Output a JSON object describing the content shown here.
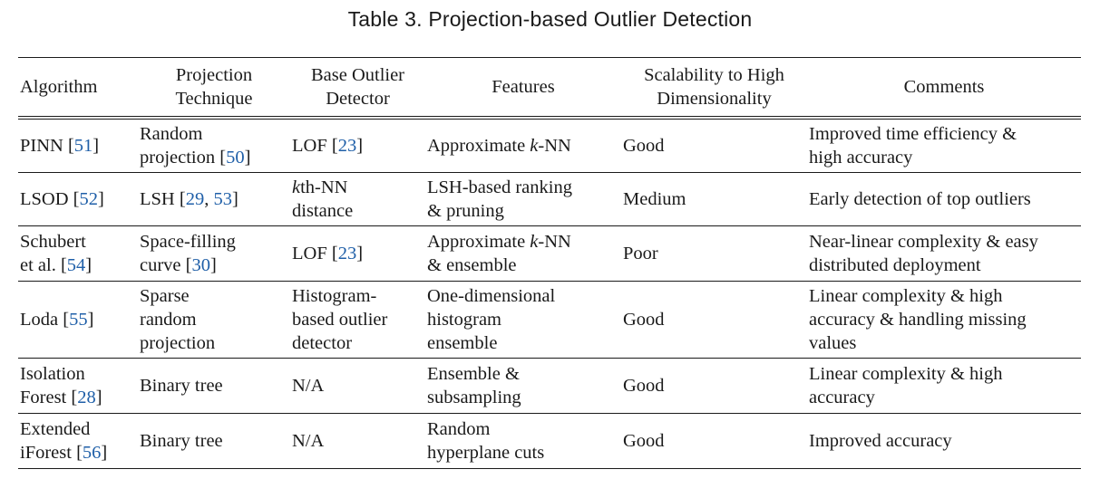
{
  "caption": "Table 3.  Projection-based Outlier Detection",
  "headers": {
    "algorithm": "Algorithm",
    "projection_line1": "Projection",
    "projection_line2": "Technique",
    "base_line1": "Base Outlier",
    "base_line2": "Detector",
    "features": "Features",
    "scalability_line1": "Scalability to High",
    "scalability_line2": "Dimensionality",
    "comments": "Comments"
  },
  "rows": [
    {
      "algorithm": {
        "text": "PINN [",
        "cite": "51",
        "close": "]"
      },
      "projection": {
        "l1": "Random",
        "l2": "projection [",
        "cite": "50",
        "close": "]"
      },
      "base": {
        "text": "LOF [",
        "cite": "23",
        "close": "]"
      },
      "features": {
        "pre": "Approximate ",
        "k": "k",
        "post": "-NN"
      },
      "scalability": "Good",
      "comments": {
        "l1": "Improved time efficiency &",
        "l2": "high accuracy"
      }
    },
    {
      "algorithm": {
        "text": "LSOD [",
        "cite": "52",
        "close": "]"
      },
      "projection": {
        "text": "LSH [",
        "cite1": "29",
        "sep": ", ",
        "cite2": "53",
        "close": "]"
      },
      "base": {
        "k": "k",
        "l1": "th-NN",
        "l2": "distance"
      },
      "features": {
        "l1": "LSH-based ranking",
        "l2": "& pruning"
      },
      "scalability": "Medium",
      "comments": {
        "l1": "Early detection of top outliers"
      }
    },
    {
      "algorithm": {
        "l1": "Schubert",
        "text": "et al. [",
        "cite": "54",
        "close": "]"
      },
      "projection": {
        "l1": "Space-filling",
        "l2": "curve [",
        "cite": "30",
        "close": "]"
      },
      "base": {
        "text": "LOF [",
        "cite": "23",
        "close": "]"
      },
      "features": {
        "pre": "Approximate ",
        "k": "k",
        "post": "-NN",
        "l2": "& ensemble"
      },
      "scalability": "Poor",
      "comments": {
        "l1": "Near-linear complexity & easy",
        "l2": "distributed deployment"
      }
    },
    {
      "algorithm": {
        "text": "Loda [",
        "cite": "55",
        "close": "]"
      },
      "projection": {
        "l1": "Sparse",
        "l2": "random",
        "l3": "projection"
      },
      "base": {
        "l1": "Histogram-",
        "l2": "based outlier",
        "l3": "detector"
      },
      "features": {
        "l1": "One-dimensional",
        "l2": "histogram",
        "l3": "ensemble"
      },
      "scalability": "Good",
      "comments": {
        "l1": "Linear complexity & high",
        "l2": "accuracy & handling missing",
        "l3": "values"
      }
    },
    {
      "algorithm": {
        "l1": "Isolation",
        "text": "Forest [",
        "cite": "28",
        "close": "]"
      },
      "projection": {
        "l1": "Binary tree"
      },
      "base": {
        "l1": "N/A"
      },
      "features": {
        "l1": "Ensemble &",
        "l2": "subsampling"
      },
      "scalability": "Good",
      "comments": {
        "l1": "Linear complexity & high",
        "l2": "accuracy"
      }
    },
    {
      "algorithm": {
        "l1": "Extended",
        "text": "iForest [",
        "cite": "56",
        "close": "]"
      },
      "projection": {
        "l1": "Binary tree"
      },
      "base": {
        "l1": "N/A"
      },
      "features": {
        "l1": "Random",
        "l2": "hyperplane cuts"
      },
      "scalability": "Good",
      "comments": {
        "l1": "Improved accuracy"
      }
    }
  ]
}
